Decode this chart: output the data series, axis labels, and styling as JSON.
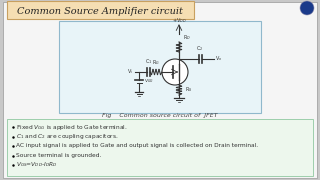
{
  "bg_color": "#c8c8c8",
  "slide_bg": "#f5f5f5",
  "title_text": "Common Source Amplifier circuit",
  "title_box_color": "#f5deb3",
  "title_box_edge": "#c8a060",
  "circuit_box_color": "#e8f4f8",
  "circuit_box_edge": "#90b8cc",
  "fig_caption": "Fig    Common source circuit of  JFET",
  "logo_color": "#1a3a7a",
  "text_color": "#222222",
  "bullet_fontsize": 4.2,
  "title_fontsize": 7.0,
  "caption_fontsize": 4.5,
  "bullet_box_color": "#edf7ed",
  "bullet_box_edge": "#90c8a0"
}
